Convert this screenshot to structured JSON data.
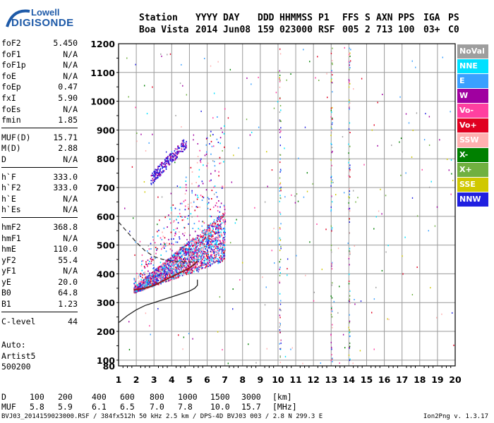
{
  "logo": {
    "line1": "Lowell",
    "line2": "DIGISONDE"
  },
  "header": {
    "labels": [
      "Station",
      "YYYY",
      "DAY",
      "DDD",
      "HHMMSS",
      "P1",
      "FFS",
      "S",
      "AXN",
      "PPS",
      "IGA",
      "PS"
    ],
    "values": [
      "Boa Vista",
      "2014",
      "Jun08",
      "159",
      "023000",
      "RSF",
      "005",
      "2",
      "713",
      "100",
      "03+",
      "C0"
    ]
  },
  "params": [
    {
      "label": "foF2",
      "value": "5.450"
    },
    {
      "label": "foF1",
      "value": "N/A"
    },
    {
      "label": "foF1p",
      "value": "N/A"
    },
    {
      "label": "foE",
      "value": "N/A"
    },
    {
      "label": "foEp",
      "value": "0.47"
    },
    {
      "label": "fxI",
      "value": "5.90"
    },
    {
      "label": "foEs",
      "value": "N/A"
    },
    {
      "label": "fmin",
      "value": "1.85"
    },
    {
      "sep": true
    },
    {
      "label": "MUF(D)",
      "value": "15.71"
    },
    {
      "label": "M(D)",
      "value": "2.88"
    },
    {
      "label": "D",
      "value": "N/A"
    },
    {
      "sep": true
    },
    {
      "label": "h`F",
      "value": "333.0"
    },
    {
      "label": "h`F2",
      "value": "333.0"
    },
    {
      "label": "h`E",
      "value": "N/A"
    },
    {
      "label": "h`Es",
      "value": "N/A"
    },
    {
      "sep": true
    },
    {
      "label": "hmF2",
      "value": "368.8"
    },
    {
      "label": "hmF1",
      "value": "N/A"
    },
    {
      "label": "hmE",
      "value": "110.0"
    },
    {
      "label": "yF2",
      "value": "55.4"
    },
    {
      "label": "yF1",
      "value": "N/A"
    },
    {
      "label": "yE",
      "value": "20.0"
    },
    {
      "label": "B0",
      "value": "64.8"
    },
    {
      "label": "B1",
      "value": "1.23"
    },
    {
      "sep": true
    },
    {
      "label": "C-level",
      "value": "44"
    }
  ],
  "auto": {
    "line1": "Auto:",
    "line2": "Artist5",
    "line3": "500200"
  },
  "legend": [
    {
      "label": "NoVal",
      "color": "#9e9e9e"
    },
    {
      "label": "NNE",
      "color": "#00e0ff"
    },
    {
      "label": "E",
      "color": "#3aa0ff"
    },
    {
      "label": "W",
      "color": "#a000a0"
    },
    {
      "label": "Vo-",
      "color": "#ff40a0"
    },
    {
      "label": "Vo+",
      "color": "#e00020"
    },
    {
      "label": "SSW",
      "color": "#ffb0b0"
    },
    {
      "label": "X-",
      "color": "#008000"
    },
    {
      "label": "X+",
      "color": "#70b040"
    },
    {
      "label": "SSE",
      "color": "#d0c800"
    },
    {
      "label": "NNW",
      "color": "#2020e0"
    }
  ],
  "chart_data": {
    "type": "scatter",
    "xlim": [
      1,
      20
    ],
    "ylim": [
      80,
      1200
    ],
    "xticks": [
      "1",
      "2",
      "3",
      "4",
      "5",
      "6",
      "7",
      "8",
      "9",
      "10",
      "11",
      "12",
      "13",
      "14",
      "15",
      "16",
      "17",
      "18",
      "19",
      "20"
    ],
    "yticks": [
      "80",
      "100",
      "200",
      "300",
      "400",
      "500",
      "600",
      "700",
      "800",
      "900",
      "1000",
      "1100",
      "1200"
    ],
    "f_trace": {
      "name": "",
      "x": [
        1.85,
        2.0,
        2.5,
        3.0,
        3.5,
        4.0,
        4.5,
        5.0,
        5.3,
        5.45
      ],
      "y": [
        345,
        345,
        350,
        360,
        375,
        390,
        405,
        420,
        435,
        445
      ]
    },
    "profile": {
      "name": "",
      "x": [
        1.0,
        1.5,
        2.0,
        2.5,
        3.0,
        3.5,
        4.0,
        4.5,
        5.0,
        5.3,
        5.45,
        5.45
      ],
      "y": [
        230,
        255,
        275,
        290,
        300,
        310,
        320,
        330,
        340,
        350,
        360,
        380
      ]
    },
    "topside": {
      "name": "",
      "x": [
        1.0,
        1.5,
        2.0,
        2.5,
        3.0,
        3.5,
        4.0,
        4.5,
        5.0,
        5.45
      ],
      "y": [
        580,
        545,
        510,
        480,
        460,
        450,
        445,
        442,
        441,
        440
      ]
    }
  },
  "bottom": {
    "row1_label": "D",
    "row1_values": [
      "100",
      "200",
      "400",
      "600",
      "800",
      "1000",
      "1500",
      "3000"
    ],
    "row1_unit": "[km]",
    "row2_label": "MUF",
    "row2_values": [
      "5.8",
      "5.9",
      "6.1",
      "6.5",
      "7.0",
      "7.8",
      "10.0",
      "15.7"
    ],
    "row2_unit": "[MHz]"
  },
  "footer": "BVJ03_2014159023000.RSF / 384fx512h 50 kHz 2.5 km / DPS-4D BVJ03 003 / 2.8 N 299.3 E",
  "version": "Ion2Png v. 1.3.17"
}
